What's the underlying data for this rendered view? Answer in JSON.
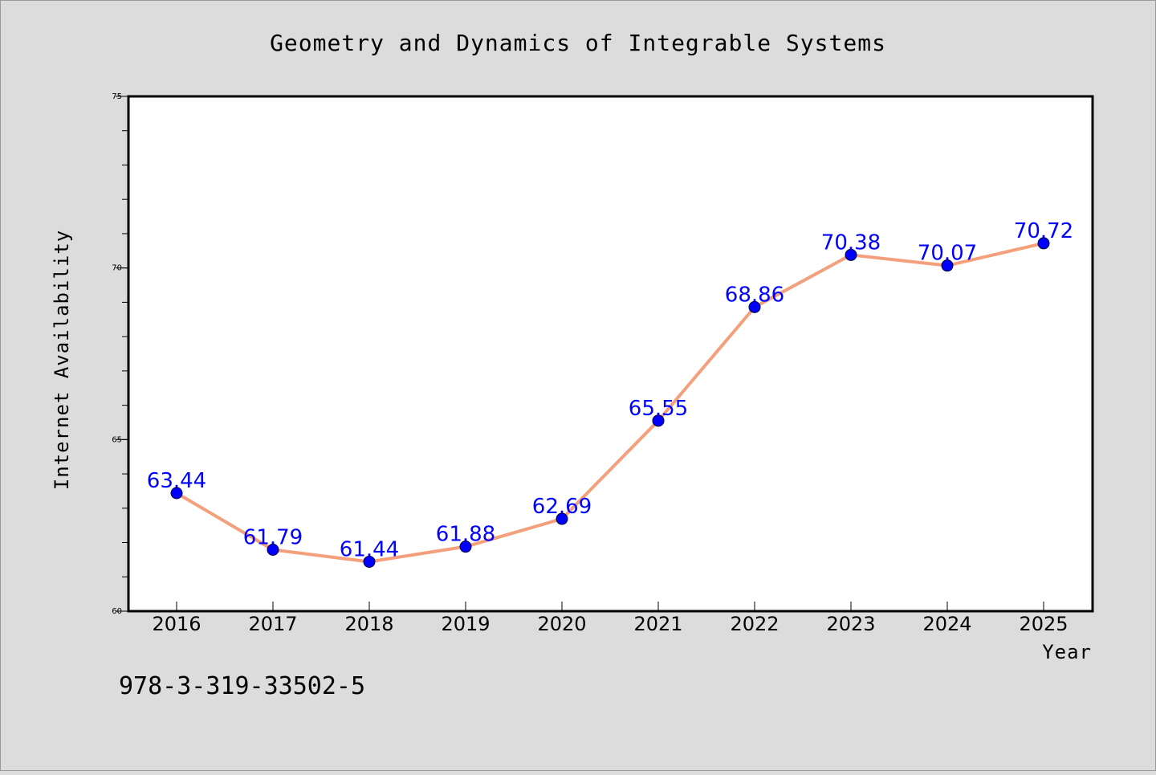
{
  "chart_data": {
    "type": "line",
    "title": "Geometry and Dynamics of Integrable Systems",
    "xlabel": "Year",
    "ylabel": "Internet Availability",
    "categories": [
      "2016",
      "2017",
      "2018",
      "2019",
      "2020",
      "2021",
      "2022",
      "2023",
      "2024",
      "2025"
    ],
    "series": [
      {
        "values": [
          63.44,
          61.79,
          61.44,
          61.88,
          62.69,
          65.55,
          68.86,
          70.38,
          70.07,
          70.72
        ],
        "data_labels": [
          "63.44",
          "61.79",
          "61.44",
          "61.88",
          "62.69",
          "65.55",
          "68.86",
          "70.38",
          "70.07",
          "70.72"
        ]
      }
    ],
    "ylim": [
      60,
      75
    ],
    "yticks": [
      "60",
      "65",
      "70",
      "75"
    ],
    "grid": false,
    "line_color": "#f4a07c",
    "marker_color": "#0000ff",
    "label_color": "#0000ff"
  },
  "footer": {
    "isbn": "978-3-319-33502-5"
  },
  "colors": {
    "background": "#dcdcdc",
    "plot_background": "#ffffff"
  }
}
